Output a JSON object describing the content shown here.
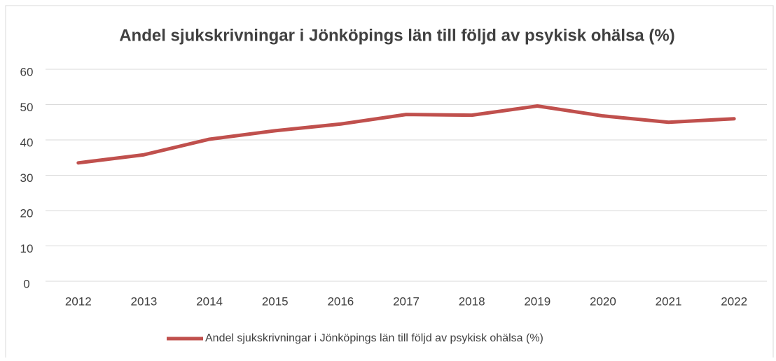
{
  "chart_data": {
    "type": "line",
    "title": "Andel sjukskrivningar i Jönköpings län till följd av psykisk ohälsa (%)",
    "categories": [
      "2012",
      "2013",
      "2014",
      "2015",
      "2016",
      "2017",
      "2018",
      "2019",
      "2020",
      "2021",
      "2022"
    ],
    "series": [
      {
        "name": "Andel sjukskrivningar i Jönköpings län till följd av psykisk ohälsa (%)",
        "color": "#c0504d",
        "values": [
          33.5,
          35.8,
          40.2,
          42.6,
          44.5,
          47.2,
          47.0,
          49.6,
          46.8,
          45.0,
          46.0
        ]
      }
    ],
    "ylim": [
      0,
      60
    ],
    "yticks": [
      0,
      10,
      20,
      30,
      40,
      50,
      60
    ],
    "grid": true,
    "legend": "bottom"
  }
}
